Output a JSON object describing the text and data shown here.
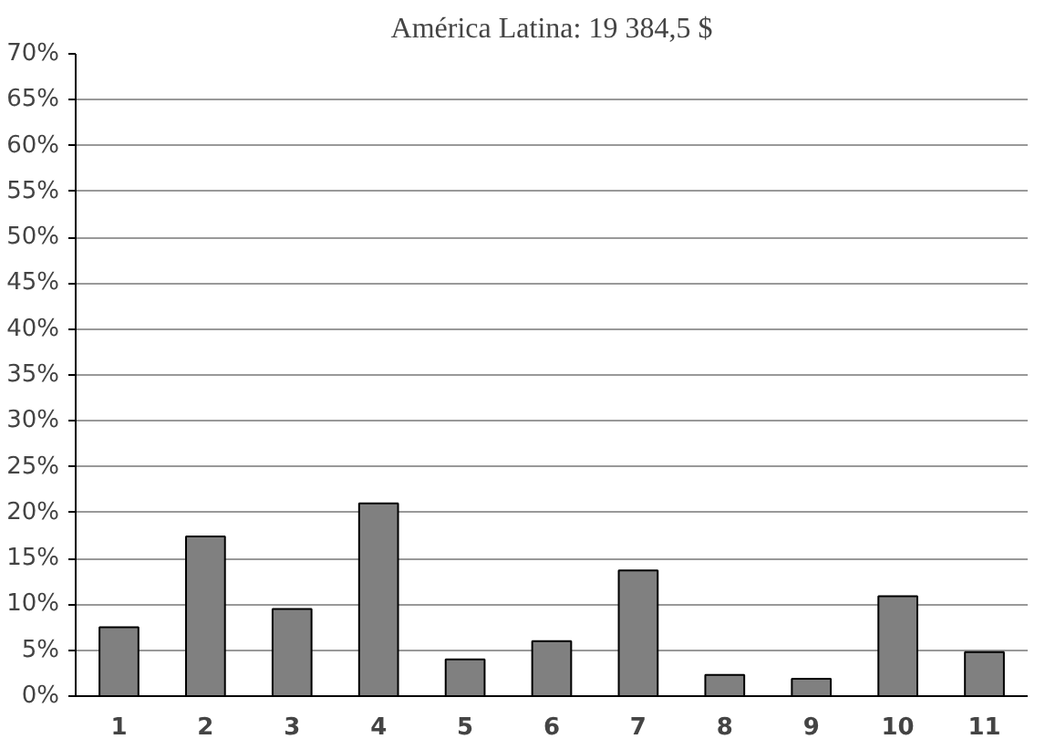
{
  "chart_data": {
    "type": "bar",
    "title": "América Latina: 19 384,5 $",
    "categories": [
      "1",
      "2",
      "3",
      "4",
      "5",
      "6",
      "7",
      "8",
      "9",
      "10",
      "11"
    ],
    "values": [
      7.5,
      17.4,
      9.5,
      21,
      4,
      6,
      13.7,
      2.3,
      1.9,
      10.9,
      4.8
    ],
    "color": "#808080",
    "ylim": [
      0,
      70
    ],
    "yticks": [
      {
        "value": 0,
        "label": "0%"
      },
      {
        "value": 5,
        "label": "5%"
      },
      {
        "value": 10,
        "label": "10%"
      },
      {
        "value": 15,
        "label": "15%"
      },
      {
        "value": 20,
        "label": "20%"
      },
      {
        "value": 25,
        "label": "25%"
      },
      {
        "value": 30,
        "label": "30%"
      },
      {
        "value": 35,
        "label": "35%"
      },
      {
        "value": 40,
        "label": "40%"
      },
      {
        "value": 45,
        "label": "45%"
      },
      {
        "value": 50,
        "label": "50%"
      },
      {
        "value": 55,
        "label": "55%"
      },
      {
        "value": 60,
        "label": "60%"
      },
      {
        "value": 65,
        "label": "65%"
      },
      {
        "value": 70,
        "label": "70%"
      }
    ],
    "grid": "y"
  }
}
